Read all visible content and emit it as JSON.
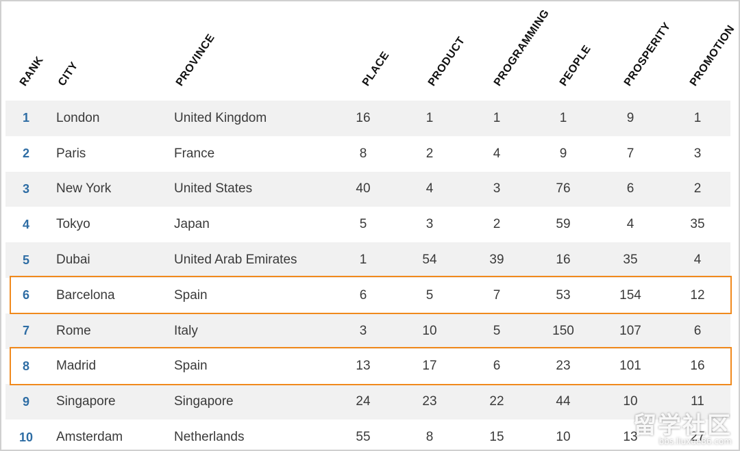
{
  "table": {
    "columns": [
      "RANK",
      "CITY",
      "PROVINCE",
      "PLACE",
      "PRODUCT",
      "PROGRAMMING",
      "PEOPLE",
      "PROSPERITY",
      "PROMOTION"
    ],
    "rows": [
      {
        "rank": "1",
        "city": "London",
        "province": "United Kingdom",
        "place": "16",
        "product": "1",
        "programming": "1",
        "people": "1",
        "prosperity": "9",
        "promotion": "1"
      },
      {
        "rank": "2",
        "city": "Paris",
        "province": "France",
        "place": "8",
        "product": "2",
        "programming": "4",
        "people": "9",
        "prosperity": "7",
        "promotion": "3"
      },
      {
        "rank": "3",
        "city": "New York",
        "province": "United States",
        "place": "40",
        "product": "4",
        "programming": "3",
        "people": "76",
        "prosperity": "6",
        "promotion": "2"
      },
      {
        "rank": "4",
        "city": "Tokyo",
        "province": "Japan",
        "place": "5",
        "product": "3",
        "programming": "2",
        "people": "59",
        "prosperity": "4",
        "promotion": "35"
      },
      {
        "rank": "5",
        "city": "Dubai",
        "province": "United Arab Emirates",
        "place": "1",
        "product": "54",
        "programming": "39",
        "people": "16",
        "prosperity": "35",
        "promotion": "4"
      },
      {
        "rank": "6",
        "city": "Barcelona",
        "province": "Spain",
        "place": "6",
        "product": "5",
        "programming": "7",
        "people": "53",
        "prosperity": "154",
        "promotion": "12"
      },
      {
        "rank": "7",
        "city": "Rome",
        "province": "Italy",
        "place": "3",
        "product": "10",
        "programming": "5",
        "people": "150",
        "prosperity": "107",
        "promotion": "6"
      },
      {
        "rank": "8",
        "city": "Madrid",
        "province": "Spain",
        "place": "13",
        "product": "17",
        "programming": "6",
        "people": "23",
        "prosperity": "101",
        "promotion": "16"
      },
      {
        "rank": "9",
        "city": "Singapore",
        "province": "Singapore",
        "place": "24",
        "product": "23",
        "programming": "22",
        "people": "44",
        "prosperity": "10",
        "promotion": "11"
      },
      {
        "rank": "10",
        "city": "Amsterdam",
        "province": "Netherlands",
        "place": "55",
        "product": "8",
        "programming": "15",
        "people": "10",
        "prosperity": "13",
        "promotion": "27"
      }
    ],
    "highlighted_ranks": [
      "6",
      "8"
    ]
  },
  "watermark": {
    "main": "留学社区",
    "sub": "bbs.liuxue86.com"
  },
  "colors": {
    "rank_text": "#2e6da4",
    "highlight_border": "#f0891c",
    "row_shade": "#f1f1f1"
  }
}
